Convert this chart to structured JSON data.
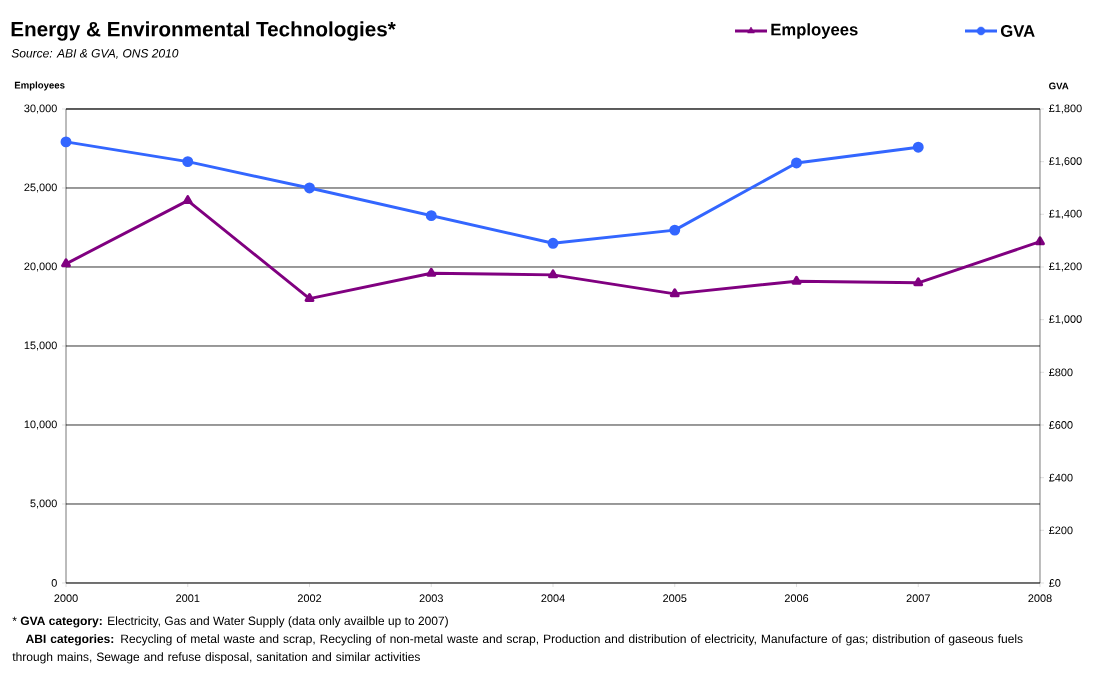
{
  "chart_data": {
    "type": "line",
    "title": "Energy & Environmental Technologies*",
    "subtitle": "Source: ABI & GVA, ONS 2010",
    "ylabel": "Employees",
    "y2label": "GVA",
    "categories": [
      "2000",
      "2001",
      "2002",
      "2003",
      "2004",
      "2005",
      "2006",
      "2007",
      "2008"
    ],
    "series": [
      {
        "name": "Employees",
        "color": "#800080",
        "marker": "triangle",
        "values": [
          20200,
          24200,
          18000,
          19600,
          19500,
          18300,
          19100,
          19000,
          21600
        ]
      },
      {
        "name": "GVA",
        "color": "#3366ff",
        "marker": "circle",
        "axis": "y2",
        "values": [
          1675,
          1600,
          1500,
          1395,
          1290,
          1340,
          1595,
          1655,
          null
        ]
      }
    ],
    "ylim": [
      0,
      30000
    ],
    "yticks": [
      {
        "value": 0,
        "label": "0"
      },
      {
        "value": 5000,
        "label": "5,000"
      },
      {
        "value": 10000,
        "label": "10,000"
      },
      {
        "value": 15000,
        "label": "15,000"
      },
      {
        "value": 20000,
        "label": "20,000"
      },
      {
        "value": 25000,
        "label": "25,000"
      },
      {
        "value": 30000,
        "label": "30,000"
      }
    ],
    "y2lim": [
      0,
      1800
    ],
    "y2ticks": [
      {
        "value": 0,
        "label": "£0"
      },
      {
        "value": 200,
        "label": "£200"
      },
      {
        "value": 400,
        "label": "£400"
      },
      {
        "value": 600,
        "label": "£600"
      },
      {
        "value": 800,
        "label": "£800"
      },
      {
        "value": 1000,
        "label": "£1,000"
      },
      {
        "value": 1200,
        "label": "£1,200"
      },
      {
        "value": 1400,
        "label": "£1,400"
      },
      {
        "value": 1600,
        "label": "£1,600"
      },
      {
        "value": 1800,
        "label": "£1,800"
      }
    ],
    "grid": "y",
    "legend": "top right",
    "annotations": [
      "* **GVA category:** Electricity, Gas and Water Supply (data only availble up to 2007)",
      "**ABI categories:** Recycling of metal waste and scrap, Recycling of non-metal waste and scrap, Production and distribution of electricity, Manufacture of gas; distribution of gaseous fuels through mains, Sewage and refuse disposal, sanitation and similar activities"
    ]
  }
}
